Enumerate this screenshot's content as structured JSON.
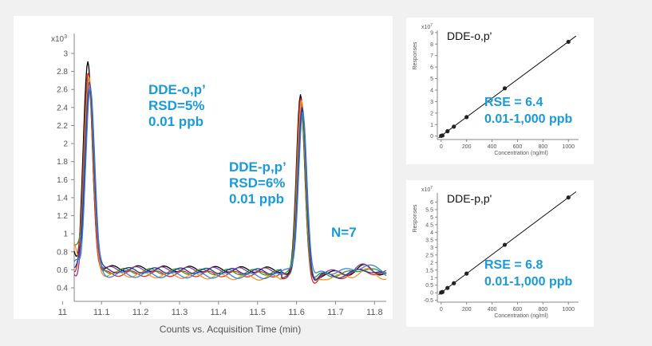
{
  "colors": {
    "background": "#f1f1f1",
    "panel": "#ffffff",
    "annotation": "#1a9ad6",
    "axis": "#888888",
    "tick_text": "#555555"
  },
  "chart_data": [
    {
      "type": "line",
      "id": "chromatogram",
      "xlabel": "Counts vs. Acquisition Time (min)",
      "y_multiplier": "x10",
      "y_multiplier_exp": "3",
      "xlim": [
        11.03,
        11.83
      ],
      "ylim": [
        0.25,
        3.15
      ],
      "x_ticks": [
        11,
        11.1,
        11.2,
        11.3,
        11.4,
        11.5,
        11.6,
        11.7,
        11.8
      ],
      "x_tick_labels": [
        "11",
        "11.1",
        "11.2",
        "11.3",
        "11.4",
        "11.5",
        "11.6",
        "11.7",
        "11.8"
      ],
      "y_ticks": [
        0.4,
        0.6,
        0.8,
        1,
        1.2,
        1.4,
        1.6,
        1.8,
        2,
        2.2,
        2.4,
        2.6,
        2.8,
        3
      ],
      "y_tick_labels": [
        "0.4",
        "0.6",
        "0.8",
        "1",
        "1.2",
        "1.4",
        "1.6",
        "1.8",
        "2",
        "2.2",
        "2.4",
        "2.6",
        "2.8",
        "3"
      ],
      "peaks": [
        {
          "compound": "DDE-o,p'",
          "time": 11.065
        },
        {
          "compound": "DDE-p,p'",
          "time": 11.61
        }
      ],
      "series": [
        {
          "color": "#000000",
          "peak1": 2.88,
          "peak2": 2.57,
          "start": 0.75,
          "level1": 0.62,
          "level2": 0.6,
          "tail": 0.56
        },
        {
          "color": "#e8281e",
          "peak1": 2.8,
          "peak2": 2.5,
          "start": 0.64,
          "level1": 0.56,
          "level2": 0.55,
          "tail": 0.53
        },
        {
          "color": "#2a9a32",
          "peak1": 2.76,
          "peak2": 2.45,
          "start": 0.88,
          "level1": 0.59,
          "level2": 0.57,
          "tail": 0.55
        },
        {
          "color": "#f0952a",
          "peak1": 2.72,
          "peak2": 2.48,
          "start": 0.82,
          "level1": 0.56,
          "level2": 0.51,
          "tail": 0.52
        },
        {
          "color": "#8b3c93",
          "peak1": 2.68,
          "peak2": 2.4,
          "start": 0.55,
          "level1": 0.61,
          "level2": 0.59,
          "tail": 0.57
        },
        {
          "color": "#1f3c8c",
          "peak1": 2.65,
          "peak2": 2.43,
          "start": 0.7,
          "level1": 0.6,
          "level2": 0.58,
          "tail": 0.54
        },
        {
          "color": "#3d7fd6",
          "peak1": 2.62,
          "peak2": 2.33,
          "start": 0.66,
          "level1": 0.55,
          "level2": 0.53,
          "tail": 0.58
        }
      ],
      "annotations": [
        {
          "lines": [
            "DDE-o,p’",
            "RSD=5%",
            "0.01 ppb"
          ]
        },
        {
          "lines": [
            "DDE-p,p’",
            "RSD=6%",
            "0.01 ppb"
          ]
        },
        {
          "lines": [
            "N=7"
          ]
        }
      ]
    },
    {
      "type": "scatter",
      "id": "calibration-opp",
      "title": "DDE-o,p'",
      "xlabel": "Concentration (ng/ml)",
      "ylabel": "Responses",
      "y_multiplier": "x10",
      "y_multiplier_exp": "7",
      "xlim": [
        -30,
        1080
      ],
      "ylim": [
        -0.3,
        9.2
      ],
      "x_ticks": [
        0,
        200,
        400,
        600,
        800,
        1000
      ],
      "x_tick_labels": [
        "0",
        "200",
        "400",
        "600",
        "800",
        "1000"
      ],
      "y_ticks": [
        0,
        1,
        2,
        3,
        4,
        5,
        6,
        7,
        8,
        9
      ],
      "y_tick_labels": [
        "0",
        "1",
        "2",
        "3",
        "4",
        "5",
        "6",
        "7",
        "8",
        "9"
      ],
      "points": [
        [
          0,
          0.02
        ],
        [
          10,
          0.05
        ],
        [
          50,
          0.42
        ],
        [
          100,
          0.82
        ],
        [
          200,
          1.65
        ],
        [
          500,
          4.15
        ],
        [
          1000,
          8.2
        ]
      ],
      "fit": {
        "x": [
          -20,
          1060
        ],
        "y": [
          -0.15,
          8.7
        ]
      },
      "rse": "RSE = 6.4",
      "range": "0.01-1,000 ppb"
    },
    {
      "type": "scatter",
      "id": "calibration-ppp",
      "title": "DDE-p,p'",
      "xlabel": "Concentration (ng/ml)",
      "ylabel": "Responses",
      "y_multiplier": "x10",
      "y_multiplier_exp": "7",
      "xlim": [
        -30,
        1080
      ],
      "ylim": [
        -0.62,
        6.6
      ],
      "x_ticks": [
        0,
        200,
        400,
        600,
        800,
        1000
      ],
      "x_tick_labels": [
        "0",
        "200",
        "400",
        "600",
        "800",
        "1000"
      ],
      "y_ticks": [
        -0.5,
        0,
        0.5,
        1,
        1.5,
        2,
        2.5,
        3,
        3.5,
        4,
        4.5,
        5,
        5.5,
        6
      ],
      "y_tick_labels": [
        "-0.5",
        "0",
        "0.5",
        "1",
        "1.5",
        "2",
        "2.5",
        "3",
        "3.5",
        "4",
        "4.5",
        "5",
        "5.5",
        "6"
      ],
      "points": [
        [
          0,
          0.02
        ],
        [
          10,
          0.05
        ],
        [
          50,
          0.32
        ],
        [
          100,
          0.63
        ],
        [
          200,
          1.27
        ],
        [
          500,
          3.17
        ],
        [
          1000,
          6.3
        ]
      ],
      "fit": {
        "x": [
          -20,
          1060
        ],
        "y": [
          -0.12,
          6.68
        ]
      },
      "rse": "RSE = 6.8",
      "range": "0.01-1,000 ppb"
    }
  ]
}
